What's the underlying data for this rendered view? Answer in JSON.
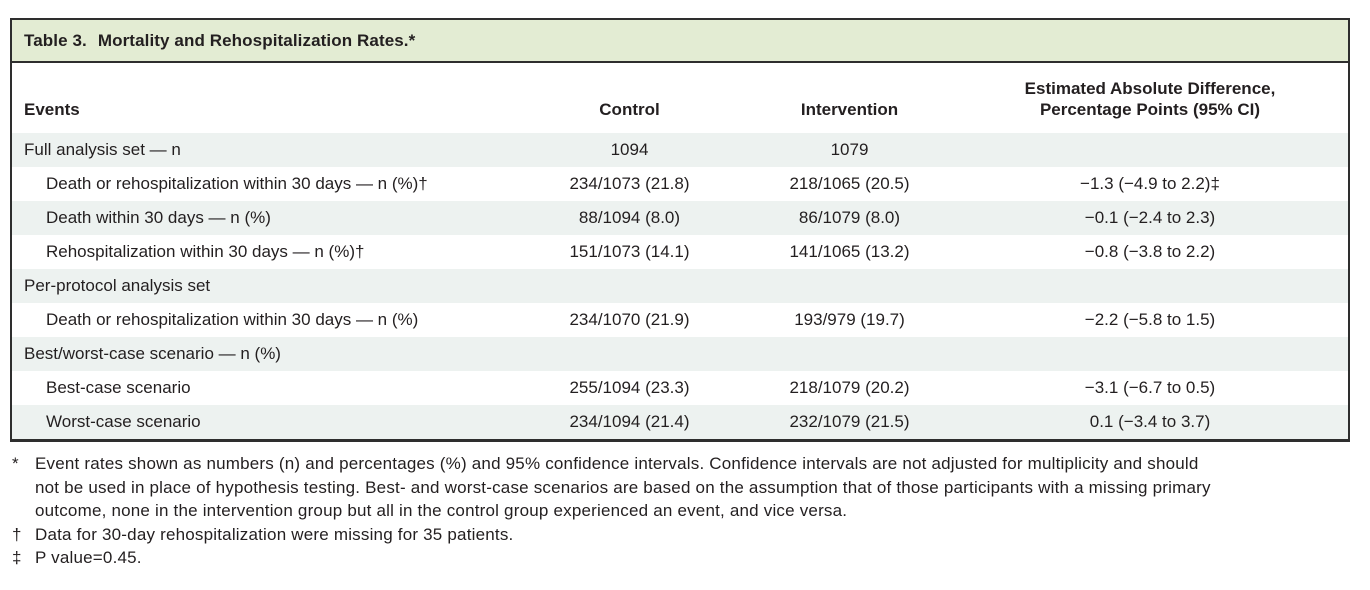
{
  "table": {
    "title_prefix": "Table 3.",
    "title": "Mortality and Rehospitalization Rates.*",
    "columns": [
      {
        "label": "Events"
      },
      {
        "label": "Control"
      },
      {
        "label": "Intervention"
      },
      {
        "line1": "Estimated Absolute Difference,",
        "line2": "Percentage Points (95% CI)"
      }
    ],
    "rows": [
      {
        "label": "Full analysis set — n",
        "indent": false,
        "control": "1094",
        "intervention": "1079",
        "difference": ""
      },
      {
        "label": "Death or rehospitalization within 30 days — n (%)†",
        "indent": true,
        "control": "234/1073 (21.8)",
        "intervention": "218/1065 (20.5)",
        "difference": "−1.3 (−4.9 to 2.2)‡"
      },
      {
        "label": "Death within 30 days — n (%)",
        "indent": true,
        "control": "88/1094 (8.0)",
        "intervention": "86/1079 (8.0)",
        "difference": "−0.1 (−2.4 to 2.3)"
      },
      {
        "label": "Rehospitalization within 30 days — n (%)†",
        "indent": true,
        "control": "151/1073 (14.1)",
        "intervention": "141/1065 (13.2)",
        "difference": "−0.8 (−3.8 to 2.2)"
      },
      {
        "label": "Per-protocol analysis set",
        "indent": false,
        "control": "",
        "intervention": "",
        "difference": ""
      },
      {
        "label": "Death or rehospitalization within 30 days — n (%)",
        "indent": true,
        "control": "234/1070 (21.9)",
        "intervention": "193/979 (19.7)",
        "difference": "−2.2 (−5.8 to 1.5)"
      },
      {
        "label": "Best/worst-case scenario — n (%)",
        "indent": false,
        "control": "",
        "intervention": "",
        "difference": ""
      },
      {
        "label": "Best-case scenario",
        "indent": true,
        "control": "255/1094 (23.3)",
        "intervention": "218/1079 (20.2)",
        "difference": "−3.1 (−6.7 to 0.5)"
      },
      {
        "label": "Worst-case scenario",
        "indent": true,
        "control": "234/1094 (21.4)",
        "intervention": "232/1079 (21.5)",
        "difference": "0.1 (−3.4 to 3.7)"
      }
    ]
  },
  "footnotes": [
    {
      "marker": "*",
      "text": "Event rates shown as numbers (n) and percentages (%) and 95% confidence intervals. Confidence intervals are not adjusted for multiplicity and should not be used in place of hypothesis testing. Best- and worst-case scenarios are based on the assumption that of those participants with a missing primary outcome, none in the intervention group but all in the control group experienced an event, and vice versa."
    },
    {
      "marker": "†",
      "text": "Data for 30-day rehospitalization were missing for 35 patients."
    },
    {
      "marker": "‡",
      "text": "P value=0.45."
    }
  ],
  "colors": {
    "title_bar_bg": "#e3ecd3",
    "row_stripe_bg": "#edf2f0",
    "border": "#2e2e2e",
    "text": "#231f20"
  }
}
